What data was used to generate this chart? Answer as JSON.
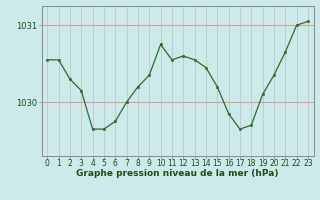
{
  "x": [
    0,
    1,
    2,
    3,
    4,
    5,
    6,
    7,
    8,
    9,
    10,
    11,
    12,
    13,
    14,
    15,
    16,
    17,
    18,
    19,
    20,
    21,
    22,
    23
  ],
  "y": [
    1030.55,
    1030.55,
    1030.3,
    1030.15,
    1029.65,
    1029.65,
    1029.75,
    1030.0,
    1030.2,
    1030.35,
    1030.75,
    1030.55,
    1030.6,
    1030.55,
    1030.45,
    1030.2,
    1029.85,
    1029.65,
    1029.7,
    1030.1,
    1030.35,
    1030.65,
    1031.0,
    1031.05
  ],
  "line_color": "#2d6a2d",
  "marker_color": "#2d6a2d",
  "bg_color": "#cdeaea",
  "grid_color_v": "#c0c0c0",
  "grid_color_h": "#f08080",
  "border_color": "#888888",
  "xlabel": "Graphe pression niveau de la mer (hPa)",
  "ylim_min": 1029.3,
  "ylim_max": 1031.25,
  "yticks": [
    1030,
    1031
  ],
  "xticks": [
    0,
    1,
    2,
    3,
    4,
    5,
    6,
    7,
    8,
    9,
    10,
    11,
    12,
    13,
    14,
    15,
    16,
    17,
    18,
    19,
    20,
    21,
    22,
    23
  ],
  "title_color": "#1a4d1a",
  "tick_color": "#1a4d1a",
  "label_fontsize": 6.5,
  "tick_fontsize": 6.0
}
